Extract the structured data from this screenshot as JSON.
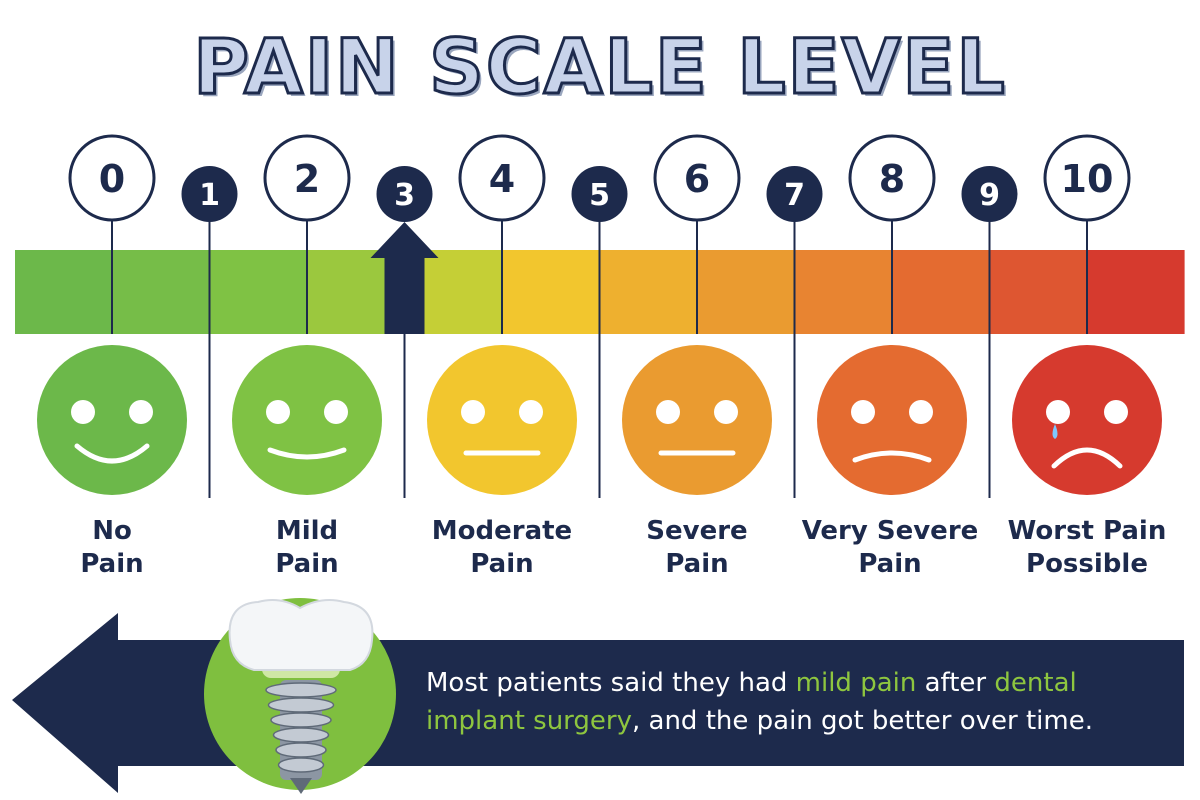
{
  "title": "PAIN SCALE LEVEL",
  "scale": {
    "levels": [
      "0",
      "1",
      "2",
      "3",
      "4",
      "5",
      "6",
      "7",
      "8",
      "9",
      "10"
    ],
    "current_level": 3,
    "bar_colors": [
      "#6cb84a",
      "#76bd48",
      "#7fc244",
      "#9bc83e",
      "#c5cf36",
      "#f2c62e",
      "#eeb02f",
      "#ea9b30",
      "#e88431",
      "#e46b30",
      "#de5631",
      "#d63a2e"
    ],
    "marker_color": "#1d2a4c"
  },
  "faces": [
    {
      "label_line1": "No",
      "label_line2": "Pain",
      "color": "#6cb84a",
      "mouth": "smile"
    },
    {
      "label_line1": "Mild",
      "label_line2": "Pain",
      "color": "#7fc244",
      "mouth": "slight-smile"
    },
    {
      "label_line1": "Moderate",
      "label_line2": "Pain",
      "color": "#f2c62e",
      "mouth": "flat"
    },
    {
      "label_line1": "Severe",
      "label_line2": "Pain",
      "color": "#ea9b30",
      "mouth": "flat"
    },
    {
      "label_line1": "Very Severe",
      "label_line2": "Pain",
      "color": "#e46b30",
      "mouth": "slight-frown"
    },
    {
      "label_line1": "Worst Pain",
      "label_line2": "Possible",
      "color": "#d63a2e",
      "mouth": "frown-tear"
    }
  ],
  "banner": {
    "text_1": "Most patients said they had ",
    "highlight_1": "mild pain",
    "text_2": " after ",
    "highlight_2": "dental implant surgery",
    "text_3": ", and the pain got better over time.",
    "background": "#1d2a4c",
    "highlight_color": "#8ec63f",
    "icon": "dental-implant-icon"
  }
}
